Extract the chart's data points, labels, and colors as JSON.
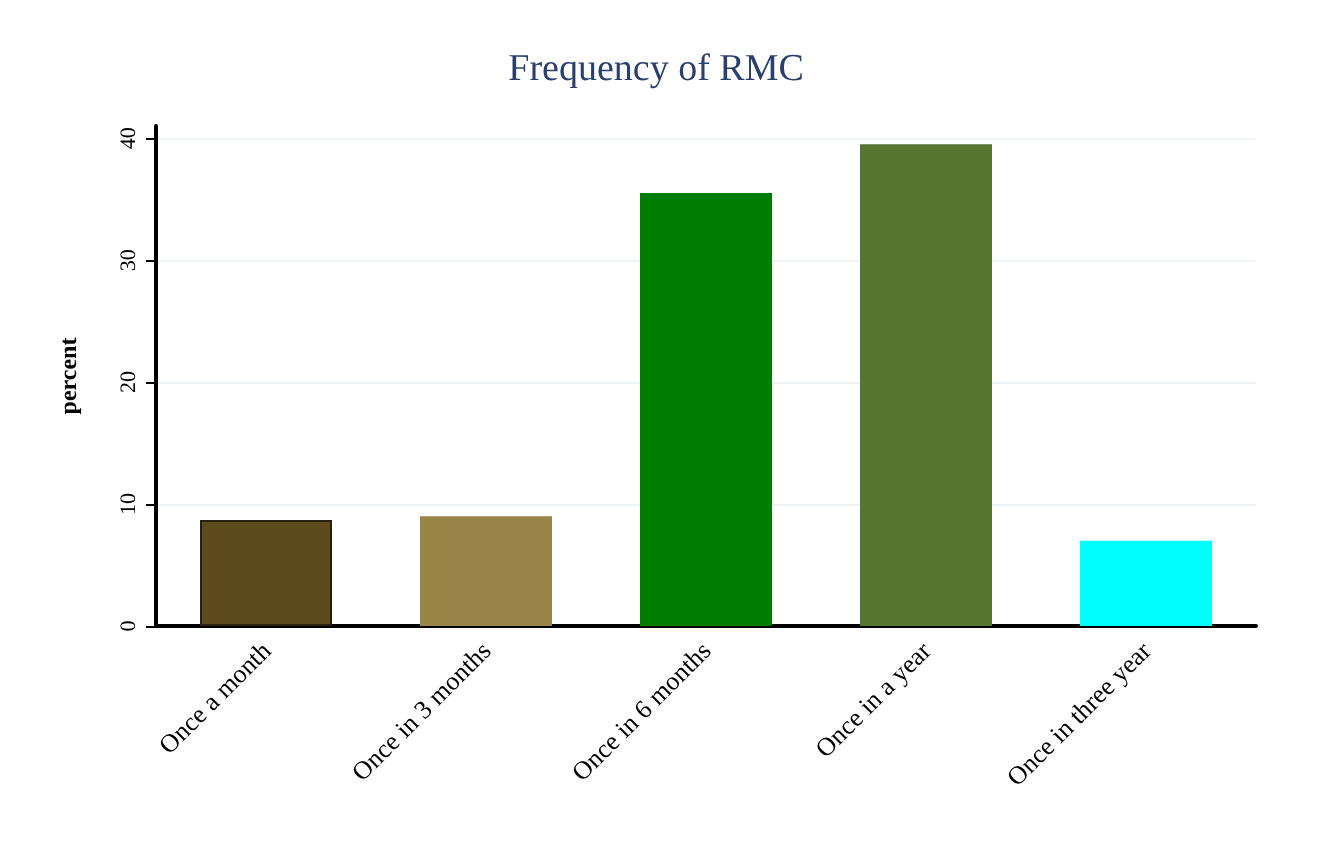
{
  "chart_data": {
    "type": "bar",
    "title": "Frequency of RMC",
    "ylabel": "percent",
    "categories": [
      "Once a month",
      "Once in 3 months",
      "Once in 6 months",
      "Once in a year",
      "Once in three year"
    ],
    "values": [
      8.7,
      9.0,
      35.5,
      39.5,
      7.0
    ],
    "colors": [
      "#5c4a1c",
      "#9a8548",
      "#007c00",
      "#557530",
      "#00ffff"
    ],
    "ylim": [
      0,
      41
    ],
    "yticks": [
      0,
      10,
      20,
      30,
      40
    ],
    "grid": "y"
  }
}
